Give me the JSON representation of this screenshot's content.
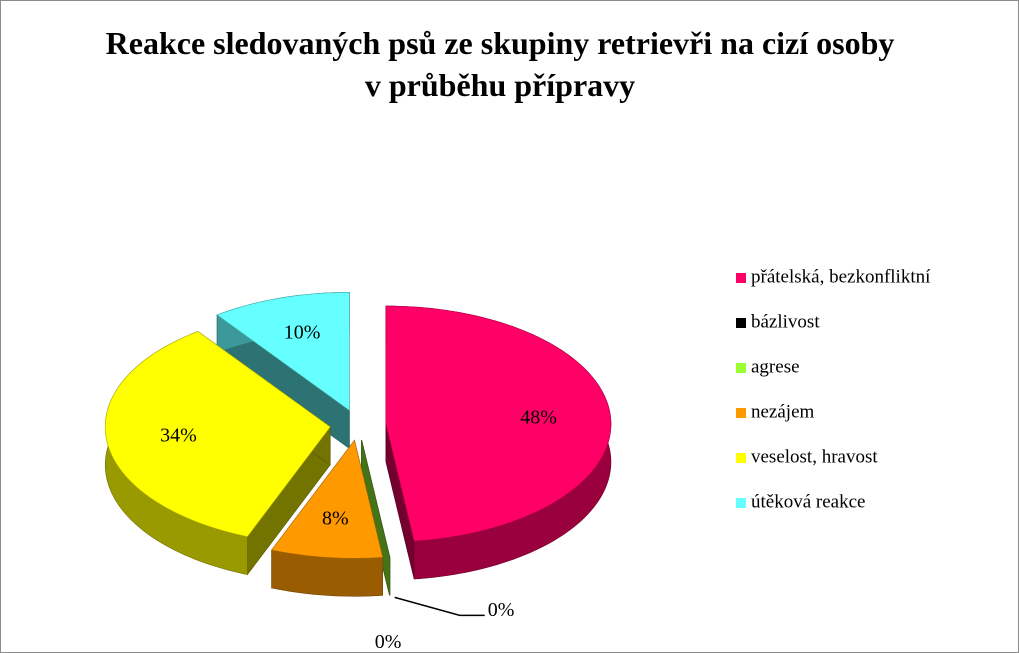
{
  "chart_data": {
    "type": "pie",
    "title": "Reakce sledovaných psů ze skupiny retrievři na cizí osoby v průběhu přípravy",
    "categories": [
      "přátelská, bezkonfliktní",
      "bázlivost",
      "agrese",
      "nezájem",
      "veselost, hravost",
      "útěková reakce"
    ],
    "values": [
      48,
      0,
      0,
      8,
      34,
      10
    ],
    "value_labels": [
      "48%",
      "0%",
      "0%",
      "8%",
      "34%",
      "10%"
    ],
    "colors": [
      "#ff0066",
      "#000000",
      "#99ff33",
      "#ff9900",
      "#ffff00",
      "#66ffff"
    ],
    "legend": "right"
  }
}
